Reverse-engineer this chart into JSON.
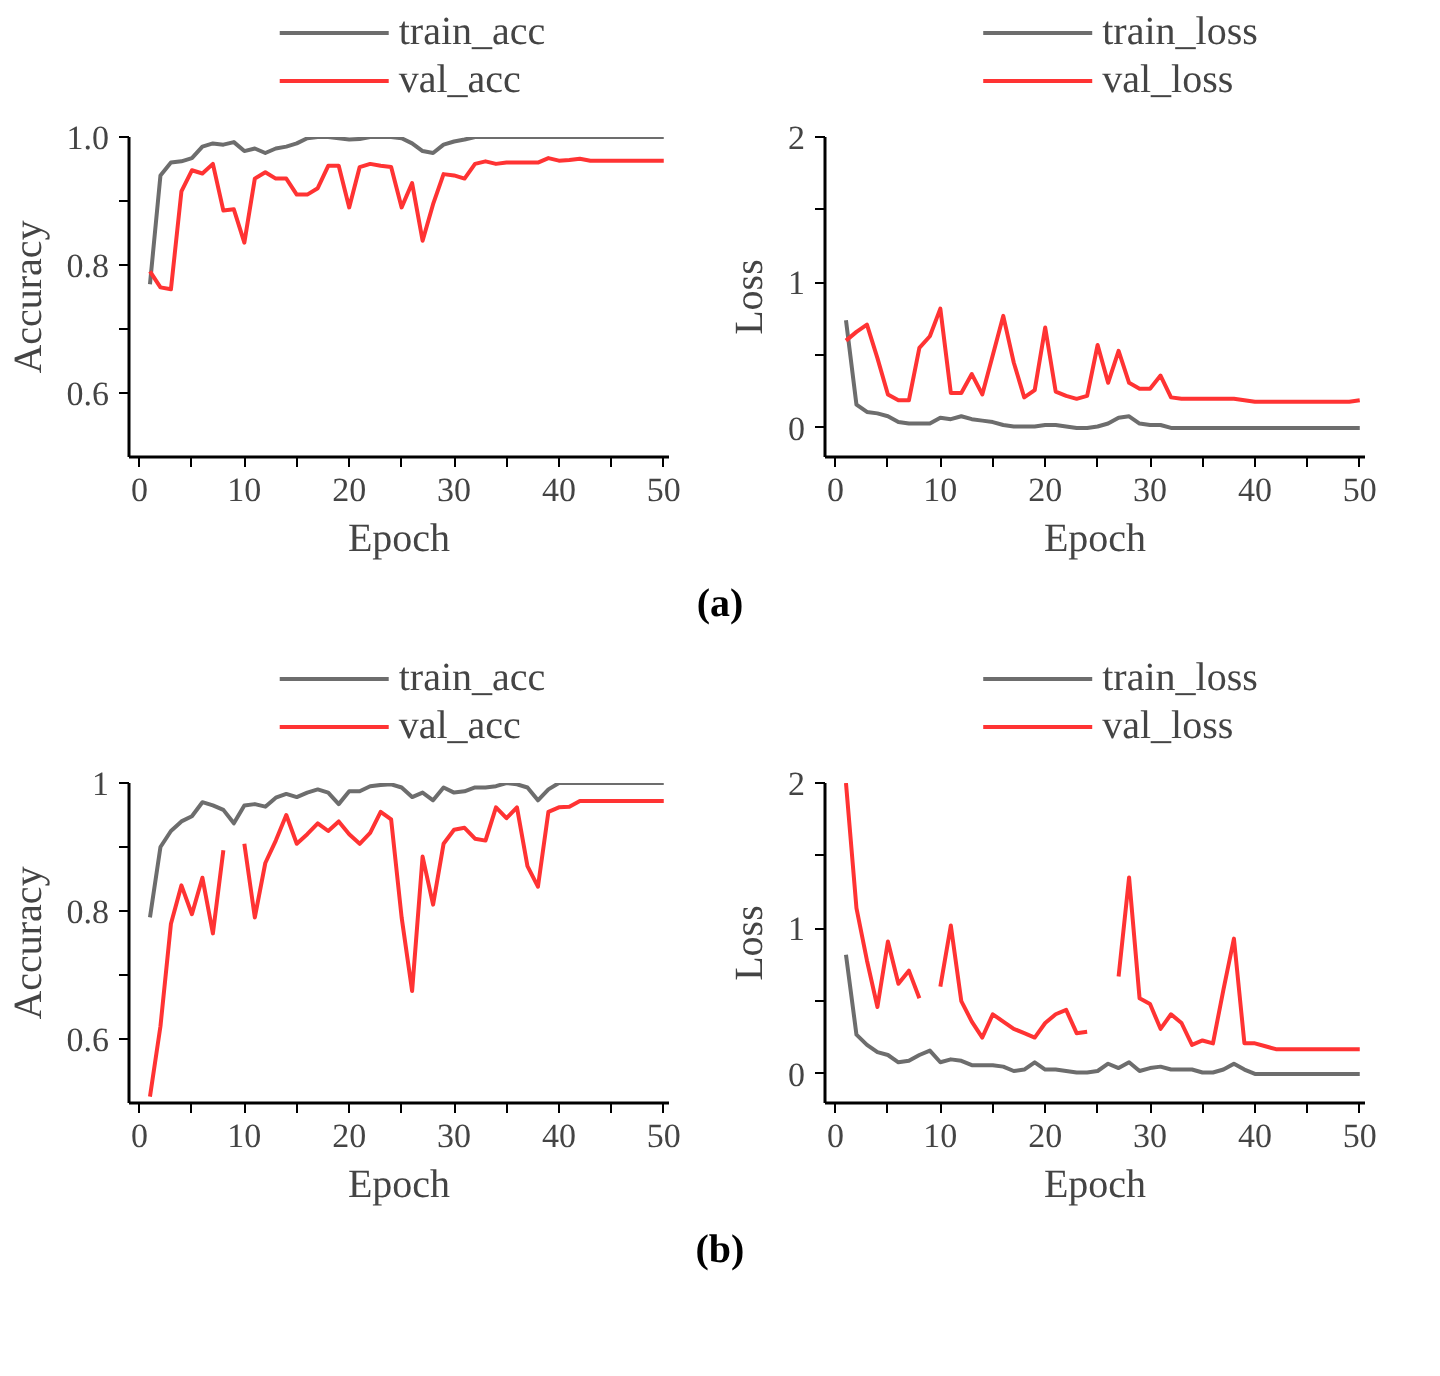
{
  "chart_data": [
    {
      "type": "line",
      "xlabel": "Epoch",
      "ylabel": "Accuracy",
      "x": [
        1,
        2,
        3,
        4,
        5,
        6,
        7,
        8,
        9,
        10,
        11,
        12,
        13,
        14,
        15,
        16,
        17,
        18,
        19,
        20,
        21,
        22,
        23,
        24,
        25,
        26,
        27,
        28,
        29,
        30,
        31,
        32,
        33,
        34,
        35,
        36,
        37,
        38,
        39,
        40,
        41,
        42,
        43,
        44,
        45,
        46,
        47,
        48,
        49,
        50
      ],
      "xlim": [
        -1,
        50.5
      ],
      "xticks": [
        0,
        {
          "value": 5,
          "label": null
        },
        10,
        {
          "value": 15,
          "label": null
        },
        20,
        {
          "value": 25,
          "label": null
        },
        30,
        {
          "value": 35,
          "label": null
        },
        40,
        {
          "value": 45,
          "label": null
        },
        50
      ],
      "ylim": [
        0.5,
        1.0
      ],
      "yticks": [
        {
          "value": 0.6,
          "label": "0.6"
        },
        {
          "value": 0.7,
          "label": null
        },
        {
          "value": 0.8,
          "label": "0.8"
        },
        {
          "value": 0.9,
          "label": null
        },
        {
          "value": 1.0,
          "label": "1.0"
        }
      ],
      "legend": "top",
      "grid": false,
      "annotations": [
        "(a)"
      ],
      "series": [
        {
          "name": "train_acc",
          "color": "#6d6d6d",
          "values": [
            0.77,
            0.94,
            0.96,
            0.962,
            0.967,
            0.985,
            0.99,
            0.988,
            0.992,
            0.978,
            0.982,
            0.975,
            0.982,
            0.985,
            0.99,
            0.998,
            1.0,
            1.0,
            0.998,
            0.996,
            0.997,
            1.0,
            1.0,
            1.0,
            0.998,
            0.99,
            0.978,
            0.975,
            0.988,
            0.993,
            0.996,
            1.0,
            1.0,
            1.0,
            1.0,
            1.0,
            1.0,
            1.0,
            1.0,
            1.0,
            1.0,
            1.0,
            1.0,
            1.0,
            1.0,
            1.0,
            1.0,
            1.0,
            1.0,
            1.0
          ]
        },
        {
          "name": "val_acc",
          "color": "#ff3333",
          "values": [
            0.79,
            0.765,
            0.762,
            0.915,
            0.948,
            0.943,
            0.958,
            0.885,
            0.887,
            0.835,
            0.935,
            0.945,
            0.935,
            0.935,
            0.91,
            0.91,
            0.92,
            0.955,
            0.955,
            0.89,
            0.953,
            0.958,
            0.955,
            0.953,
            0.89,
            0.928,
            0.838,
            0.895,
            0.942,
            0.94,
            0.935,
            0.958,
            0.962,
            0.958,
            0.96,
            0.96,
            0.96,
            0.96,
            0.967,
            0.963,
            0.964,
            0.966,
            0.963,
            0.963,
            0.963,
            0.963,
            0.963,
            0.963,
            0.963,
            0.963
          ]
        }
      ]
    },
    {
      "type": "line",
      "xlabel": "Epoch",
      "ylabel": "Loss",
      "x": [
        1,
        2,
        3,
        4,
        5,
        6,
        7,
        8,
        9,
        10,
        11,
        12,
        13,
        14,
        15,
        16,
        17,
        18,
        19,
        20,
        21,
        22,
        23,
        24,
        25,
        26,
        27,
        28,
        29,
        30,
        31,
        32,
        33,
        34,
        35,
        36,
        37,
        38,
        39,
        40,
        41,
        42,
        43,
        44,
        45,
        46,
        47,
        48,
        49,
        50
      ],
      "xlim": [
        -1,
        50.5
      ],
      "xticks": [
        0,
        {
          "value": 5,
          "label": null
        },
        10,
        {
          "value": 15,
          "label": null
        },
        20,
        {
          "value": 25,
          "label": null
        },
        30,
        {
          "value": 35,
          "label": null
        },
        40,
        {
          "value": 45,
          "label": null
        },
        50
      ],
      "ylim": [
        -0.2,
        2
      ],
      "yticks": [
        0,
        {
          "value": 0.5,
          "label": null
        },
        1,
        {
          "value": 1.5,
          "label": null
        },
        2
      ],
      "legend": "top",
      "grid": false,
      "series": [
        {
          "name": "train_loss",
          "color": "#6d6d6d",
          "values": [
            0.74,
            0.16,
            0.11,
            0.1,
            0.08,
            0.04,
            0.03,
            0.03,
            0.03,
            0.07,
            0.06,
            0.08,
            0.06,
            0.05,
            0.04,
            0.02,
            0.01,
            0.01,
            0.01,
            0.02,
            0.02,
            0.01,
            0,
            0,
            0.01,
            0.03,
            0.07,
            0.08,
            0.03,
            0.02,
            0.02,
            0,
            0,
            0,
            0,
            0,
            0,
            0,
            0,
            0,
            0,
            0,
            0,
            0,
            0,
            0,
            0,
            0,
            0,
            0
          ]
        },
        {
          "name": "val_loss",
          "color": "#ff3333",
          "values": [
            0.6,
            0.66,
            0.71,
            0.48,
            0.23,
            0.19,
            0.19,
            0.55,
            0.63,
            0.82,
            0.24,
            0.24,
            0.37,
            0.23,
            0.5,
            0.77,
            0.45,
            0.21,
            0.26,
            0.69,
            0.25,
            0.22,
            0.2,
            0.22,
            0.57,
            0.31,
            0.53,
            0.31,
            0.27,
            0.27,
            0.36,
            0.21,
            0.2,
            0.2,
            0.2,
            0.2,
            0.2,
            0.2,
            0.19,
            0.18,
            0.18,
            0.18,
            0.18,
            0.18,
            0.18,
            0.18,
            0.18,
            0.18,
            0.18,
            0.19
          ]
        }
      ]
    },
    {
      "type": "line",
      "xlabel": "Epoch",
      "ylabel": "Accuracy",
      "x": [
        1,
        2,
        3,
        4,
        5,
        6,
        7,
        8,
        9,
        10,
        11,
        12,
        13,
        14,
        15,
        16,
        17,
        18,
        19,
        20,
        21,
        22,
        23,
        24,
        25,
        26,
        27,
        28,
        29,
        30,
        31,
        32,
        33,
        34,
        35,
        36,
        37,
        38,
        39,
        40,
        41,
        42,
        43,
        44,
        45,
        46,
        47,
        48,
        49,
        50
      ],
      "xlim": [
        -1,
        50.5
      ],
      "xticks": [
        0,
        {
          "value": 5,
          "label": null
        },
        10,
        {
          "value": 15,
          "label": null
        },
        20,
        {
          "value": 25,
          "label": null
        },
        30,
        {
          "value": 35,
          "label": null
        },
        40,
        {
          "value": 45,
          "label": null
        },
        50
      ],
      "ylim": [
        0.5,
        1.0
      ],
      "yticks": [
        0.6,
        {
          "value": 0.7,
          "label": null
        },
        0.8,
        {
          "value": 0.9,
          "label": null
        },
        1.0
      ],
      "legend": "top",
      "grid": false,
      "annotations": [
        "(b)"
      ],
      "series": [
        {
          "name": "train_acc",
          "color": "#6d6d6d",
          "values": [
            0.79,
            0.9,
            0.925,
            0.94,
            0.948,
            0.97,
            0.965,
            0.958,
            0.937,
            0.965,
            0.967,
            0.963,
            0.977,
            0.983,
            0.978,
            0.985,
            0.99,
            0.985,
            0.967,
            0.987,
            0.987,
            0.995,
            0.997,
            0.998,
            0.993,
            0.978,
            0.985,
            0.973,
            0.993,
            0.985,
            0.987,
            0.993,
            0.993,
            0.995,
            1.0,
            0.998,
            0.993,
            0.973,
            0.99,
            1.0,
            1.0,
            1.0,
            1.0,
            1.0,
            1.0,
            1.0,
            1.0,
            1.0,
            1.0,
            1.0
          ]
        },
        {
          "name": "val_acc",
          "color": "#ff3333",
          "values": [
            0.51,
            0.62,
            0.78,
            0.84,
            0.795,
            0.852,
            0.765,
            0.895,
            null,
            0.905,
            0.79,
            0.875,
            0.91,
            0.95,
            0.905,
            0.92,
            0.937,
            0.925,
            0.94,
            0.92,
            0.905,
            0.922,
            0.955,
            0.943,
            0.79,
            0.675,
            0.885,
            0.81,
            0.905,
            0.927,
            0.93,
            0.913,
            0.91,
            0.962,
            0.945,
            0.962,
            0.87,
            0.838,
            0.955,
            0.962,
            0.963,
            0.972,
            0.972,
            0.972,
            0.972,
            0.972,
            0.972,
            0.972,
            0.972,
            0.972
          ]
        }
      ]
    },
    {
      "type": "line",
      "xlabel": "Epoch",
      "ylabel": "Loss",
      "x": [
        1,
        2,
        3,
        4,
        5,
        6,
        7,
        8,
        9,
        10,
        11,
        12,
        13,
        14,
        15,
        16,
        17,
        18,
        19,
        20,
        21,
        22,
        23,
        24,
        25,
        26,
        27,
        28,
        29,
        30,
        31,
        32,
        33,
        34,
        35,
        36,
        37,
        38,
        39,
        40,
        41,
        42,
        43,
        44,
        45,
        46,
        47,
        48,
        49,
        50
      ],
      "xlim": [
        -1,
        50.5
      ],
      "xticks": [
        0,
        {
          "value": 5,
          "label": null
        },
        10,
        {
          "value": 15,
          "label": null
        },
        20,
        {
          "value": 25,
          "label": null
        },
        30,
        {
          "value": 35,
          "label": null
        },
        40,
        {
          "value": 45,
          "label": null
        },
        50
      ],
      "ylim": [
        -0.2,
        2
      ],
      "yticks": [
        0,
        {
          "value": 0.5,
          "label": null
        },
        1,
        {
          "value": 1.5,
          "label": null
        },
        2
      ],
      "legend": "top",
      "grid": false,
      "series": [
        {
          "name": "train_loss",
          "color": "#6d6d6d",
          "values": [
            0.82,
            0.27,
            0.2,
            0.15,
            0.13,
            0.08,
            0.09,
            0.13,
            0.16,
            0.08,
            0.1,
            0.09,
            0.06,
            0.06,
            0.06,
            0.05,
            0.02,
            0.03,
            0.08,
            0.03,
            0.03,
            0.02,
            0.01,
            0.01,
            0.02,
            0.07,
            0.04,
            0.08,
            0.02,
            0.04,
            0.05,
            0.03,
            0.03,
            0.03,
            0.01,
            0.01,
            0.03,
            0.07,
            0.03,
            0,
            0,
            0,
            0,
            0,
            0,
            0,
            0,
            0,
            0,
            0
          ]
        },
        {
          "name": "val_loss",
          "color": "#ff3333",
          "values": [
            2.0,
            1.14,
            0.78,
            0.46,
            0.91,
            0.62,
            0.71,
            0.52,
            null,
            0.6,
            1.02,
            0.5,
            0.36,
            0.25,
            0.41,
            0.36,
            0.31,
            0.28,
            0.25,
            0.35,
            0.41,
            0.44,
            0.28,
            0.29,
            null,
            null,
            0.67,
            1.35,
            0.52,
            0.48,
            0.31,
            0.41,
            0.35,
            0.2,
            0.23,
            0.21,
            0.58,
            0.93,
            0.21,
            0.21,
            0.19,
            0.17,
            0.17,
            0.17,
            0.17,
            0.17,
            0.17,
            0.17,
            0.17,
            0.17
          ]
        }
      ]
    }
  ]
}
